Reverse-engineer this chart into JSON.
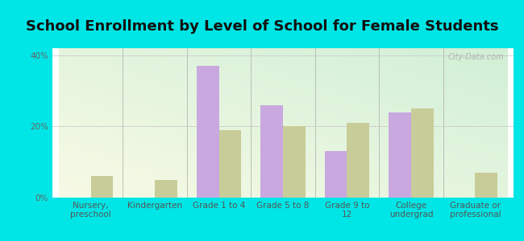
{
  "title": "School Enrollment by Level of School for Female Students",
  "categories": [
    "Nursery,\npreschool",
    "Kindergarten",
    "Grade 1 to 4",
    "Grade 5 to 8",
    "Grade 9 to\n12",
    "College\nundergrad",
    "Graduate or\nprofessional"
  ],
  "altha_values": [
    0,
    0,
    37,
    26,
    13,
    24,
    0
  ],
  "florida_values": [
    6,
    5,
    19,
    20,
    21,
    25,
    7
  ],
  "altha_color": "#c9a8e0",
  "florida_color": "#c8cc99",
  "ylim": [
    0,
    42
  ],
  "yticks": [
    0,
    20,
    40
  ],
  "ytick_labels": [
    "0%",
    "20%",
    "40%"
  ],
  "fig_bg_color": "#00e5e5",
  "plot_bg_top_left": "#d0eedd",
  "plot_bg_bottom_right": "#f8f8e8",
  "bar_width": 0.35,
  "title_fontsize": 13,
  "tick_fontsize": 7.5,
  "legend_fontsize": 9,
  "watermark_text": "City-Data.com"
}
